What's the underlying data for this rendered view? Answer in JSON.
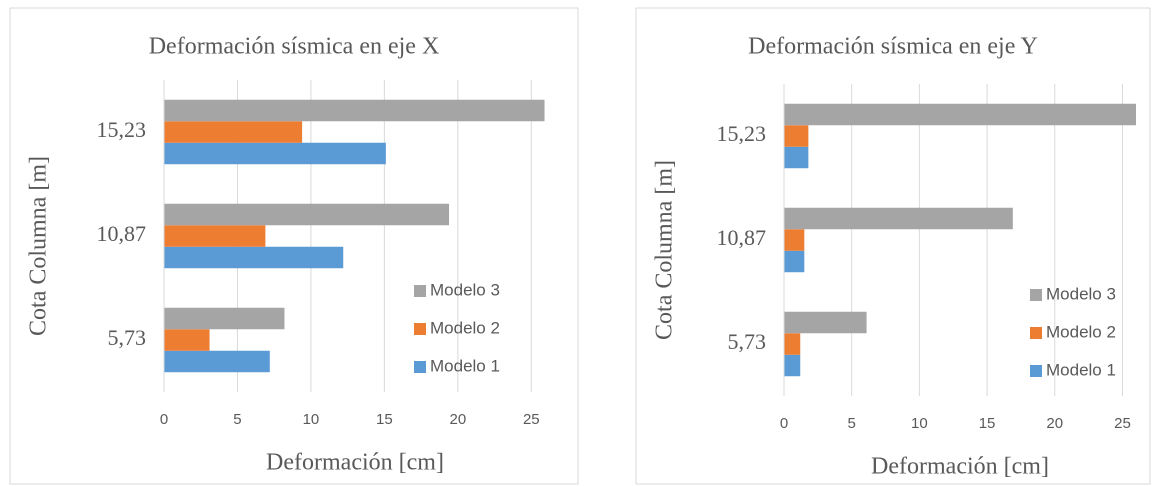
{
  "chart_data": [
    {
      "type": "bar",
      "orientation": "horizontal",
      "title": "Deformación sísmica en eje X",
      "x_label": "Deformación [cm]",
      "y_label": "Cota Columna [m]",
      "categories": [
        "5,73",
        "10,87",
        "15,23"
      ],
      "series": [
        {
          "name": "Modelo 1",
          "color": "#5b9bd5",
          "values": [
            7.2,
            12.2,
            15.1
          ]
        },
        {
          "name": "Modelo 2",
          "color": "#ed7d31",
          "values": [
            3.1,
            6.9,
            9.4
          ]
        },
        {
          "name": "Modelo 3",
          "color": "#a5a5a5",
          "values": [
            8.2,
            19.4,
            25.9
          ]
        }
      ],
      "xlim": [
        0,
        26
      ],
      "xticks": [
        0,
        5,
        10,
        15,
        20,
        25
      ],
      "grid": true,
      "legend": "right"
    },
    {
      "type": "bar",
      "orientation": "horizontal",
      "title": "Deformación sísmica en eje Y",
      "x_label": "Deformación [cm]",
      "y_label": "Cota Columna [m]",
      "categories": [
        "5,73",
        "10,87",
        "15,23"
      ],
      "series": [
        {
          "name": "Modelo 1",
          "color": "#5b9bd5",
          "values": [
            1.2,
            1.5,
            1.8
          ]
        },
        {
          "name": "Modelo 2",
          "color": "#ed7d31",
          "values": [
            1.2,
            1.5,
            1.8
          ]
        },
        {
          "name": "Modelo 3",
          "color": "#a5a5a5",
          "values": [
            6.1,
            16.9,
            26.0
          ]
        }
      ],
      "xlim": [
        0,
        26
      ],
      "xticks": [
        0,
        5,
        10,
        15,
        20,
        25
      ],
      "grid": true,
      "legend": "right"
    }
  ]
}
